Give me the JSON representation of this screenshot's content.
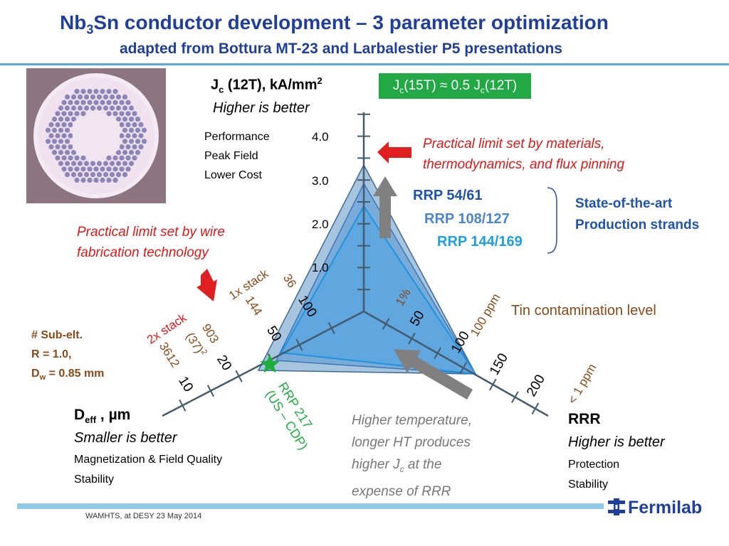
{
  "slide": {
    "title_prefix": "Nb",
    "title_sub": "3",
    "title_rest": "Sn conductor development – 3 parameter optimization",
    "subtitle": "adapted from Bottura MT-23 and Larbalestier P5 presentations",
    "footer": "WAMHTS, at DESY 23 May 2014",
    "logo_text": "Fermilab"
  },
  "jc_axis": {
    "label_a": "J",
    "label_sub": "c",
    "label_b": " (12T), kA/mm",
    "label_sup": "2",
    "subtitle": "Higher is better",
    "notes": [
      "Performance",
      "Peak Field",
      "Lower Cost"
    ],
    "ticks": [
      "4.0",
      "3.0",
      "2.0",
      "1.0"
    ]
  },
  "green_box": {
    "part1": "J",
    "sub1": "c",
    "part2": "(15T) ≈ 0.5 J",
    "sub2": "c",
    "part3": "(12T)"
  },
  "annotations": {
    "practical_materials": [
      "Practical limit set by materials,",
      "thermodynamics, and flux pinning"
    ],
    "practical_wire": [
      "Practical limit set by wire",
      "fabrication technology"
    ],
    "tin_contamination": "Tin contamination level",
    "higher_temp": [
      "Higher temperature,",
      "longer HT produces",
      "higher J",
      "c",
      " at the",
      "expense of RRR"
    ],
    "state_of_art": [
      "State-of-the-art",
      "Production strands"
    ]
  },
  "strands": [
    {
      "name": "RRP 54/61",
      "color": "#1f54a8"
    },
    {
      "name": "RRP 108/127",
      "color": "#4b86c8"
    },
    {
      "name": "RRP 144/169",
      "color": "#1f9fe0"
    }
  ],
  "deff_axis": {
    "label_a": "D",
    "label_sub": "eff",
    "label_b": " , µm",
    "subtitle": "Smaller is better",
    "notes": [
      "Magnetization & Field Quality",
      "Stability"
    ],
    "ticks": [
      "100",
      "50",
      "20",
      "10"
    ],
    "stack_1x": "1x stack",
    "stack_2x": "2x stack",
    "sub_counts": [
      "36",
      "144",
      "903",
      "(37)",
      "2",
      "3612"
    ],
    "rrp217_line1": "RRP 217",
    "rrp217_line2": "(US – CDP)"
  },
  "rrr_axis": {
    "label": "RRR",
    "subtitle": "Higher is better",
    "notes": [
      "Protection",
      "Stability"
    ],
    "ticks": [
      "50",
      "100",
      "150",
      "200"
    ],
    "pct": "1%",
    "ppm100": "100 ppm",
    "ppm1": "< 1 ppm"
  },
  "sub_element": {
    "line1": "# Sub-elt.",
    "line2": "R = 1.0,",
    "line3a": "D",
    "line3sub": "w",
    "line3b": " = 0.85 mm"
  },
  "colors": {
    "title": "#1f3f9a",
    "red": "#dd1818",
    "green": "#22a845",
    "brown": "#8a4a18",
    "gray_text": "#777777"
  }
}
